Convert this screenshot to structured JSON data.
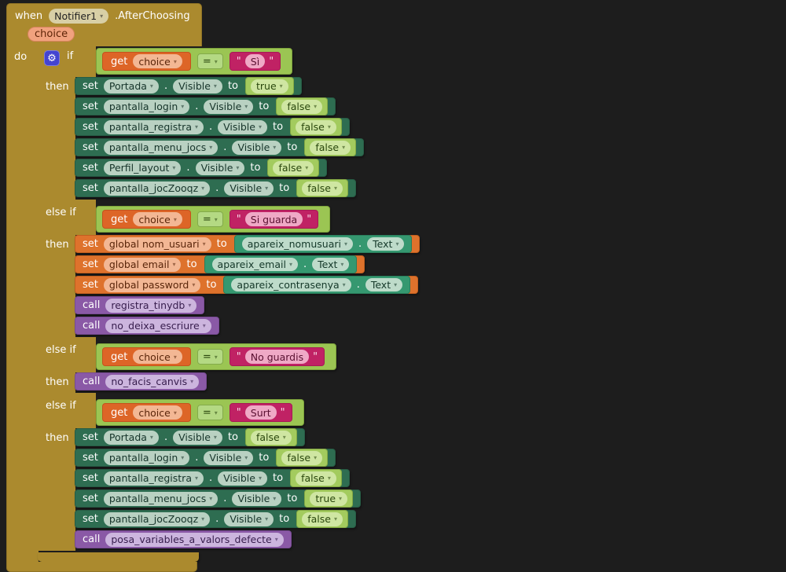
{
  "icons": {
    "gear": "⚙",
    "dropdown_arrow": "▾"
  },
  "labels": {
    "when": "when",
    "do": "do",
    "if": "if",
    "then": "then",
    "else_if": "else if",
    "set": "set",
    "to": "to",
    "call": "call",
    "get": "get",
    "dot": ".",
    "eq": "=",
    "quote": "\""
  },
  "event": {
    "component": "Notifier1",
    "event_name": ".AfterChoosing",
    "param": "choice"
  },
  "conds": {
    "c1": {
      "var": "choice",
      "value": "Sì"
    },
    "c2": {
      "var": "choice",
      "value": "Si guarda"
    },
    "c3": {
      "var": "choice",
      "value": "No guardis"
    },
    "c4": {
      "var": "choice",
      "value": "Surt"
    }
  },
  "branch1_sets": [
    {
      "component": "Portada",
      "property": "Visible",
      "value": "true"
    },
    {
      "component": "pantalla_login",
      "property": "Visible",
      "value": "false"
    },
    {
      "component": "pantalla_registra",
      "property": "Visible",
      "value": "false"
    },
    {
      "component": "pantalla_menu_jocs",
      "property": "Visible",
      "value": "false"
    },
    {
      "component": "Perfil_layout",
      "property": "Visible",
      "value": "false"
    },
    {
      "component": "pantalla_jocZooqz",
      "property": "Visible",
      "value": "false"
    }
  ],
  "branch2_sets": [
    {
      "global_var": "global nom_usuari",
      "component": "apareix_nomusuari",
      "property": "Text"
    },
    {
      "global_var": "global email",
      "component": "apareix_email",
      "property": "Text"
    },
    {
      "global_var": "global password",
      "component": "apareix_contrasenya",
      "property": "Text"
    }
  ],
  "branch2_calls": [
    {
      "procedure": "registra_tinydb"
    },
    {
      "procedure": "no_deixa_escriure"
    }
  ],
  "branch3_calls": [
    {
      "procedure": "no_facis_canvis"
    }
  ],
  "branch4_sets": [
    {
      "component": "Portada",
      "property": "Visible",
      "value": "false"
    },
    {
      "component": "pantalla_login",
      "property": "Visible",
      "value": "false"
    },
    {
      "component": "pantalla_registra",
      "property": "Visible",
      "value": "false"
    },
    {
      "component": "pantalla_menu_jocs",
      "property": "Visible",
      "value": "true"
    },
    {
      "component": "pantalla_jocZooqz",
      "property": "Visible",
      "value": "false"
    }
  ],
  "branch4_calls": [
    {
      "procedure": "posa_variables_a_valors_defecte"
    }
  ],
  "colors": {
    "canvas": "#1d1d1d",
    "event_control_gold": "#ab8a2e",
    "param_chip": "#f1a27e",
    "component_setter_green": "#2e6d51",
    "component_getter_teal": "#359870",
    "property_chip": "#b9d1c2",
    "logic_frame_green": "#9bc553",
    "boolean_block_green": "#a3cb5e",
    "text_string_magenta": "#c02264",
    "variable_orange": "#de722c",
    "getter_orange": "#dd6527",
    "procedure_purple": "#8a59a6",
    "gear_icon_bg": "#4444d0"
  }
}
